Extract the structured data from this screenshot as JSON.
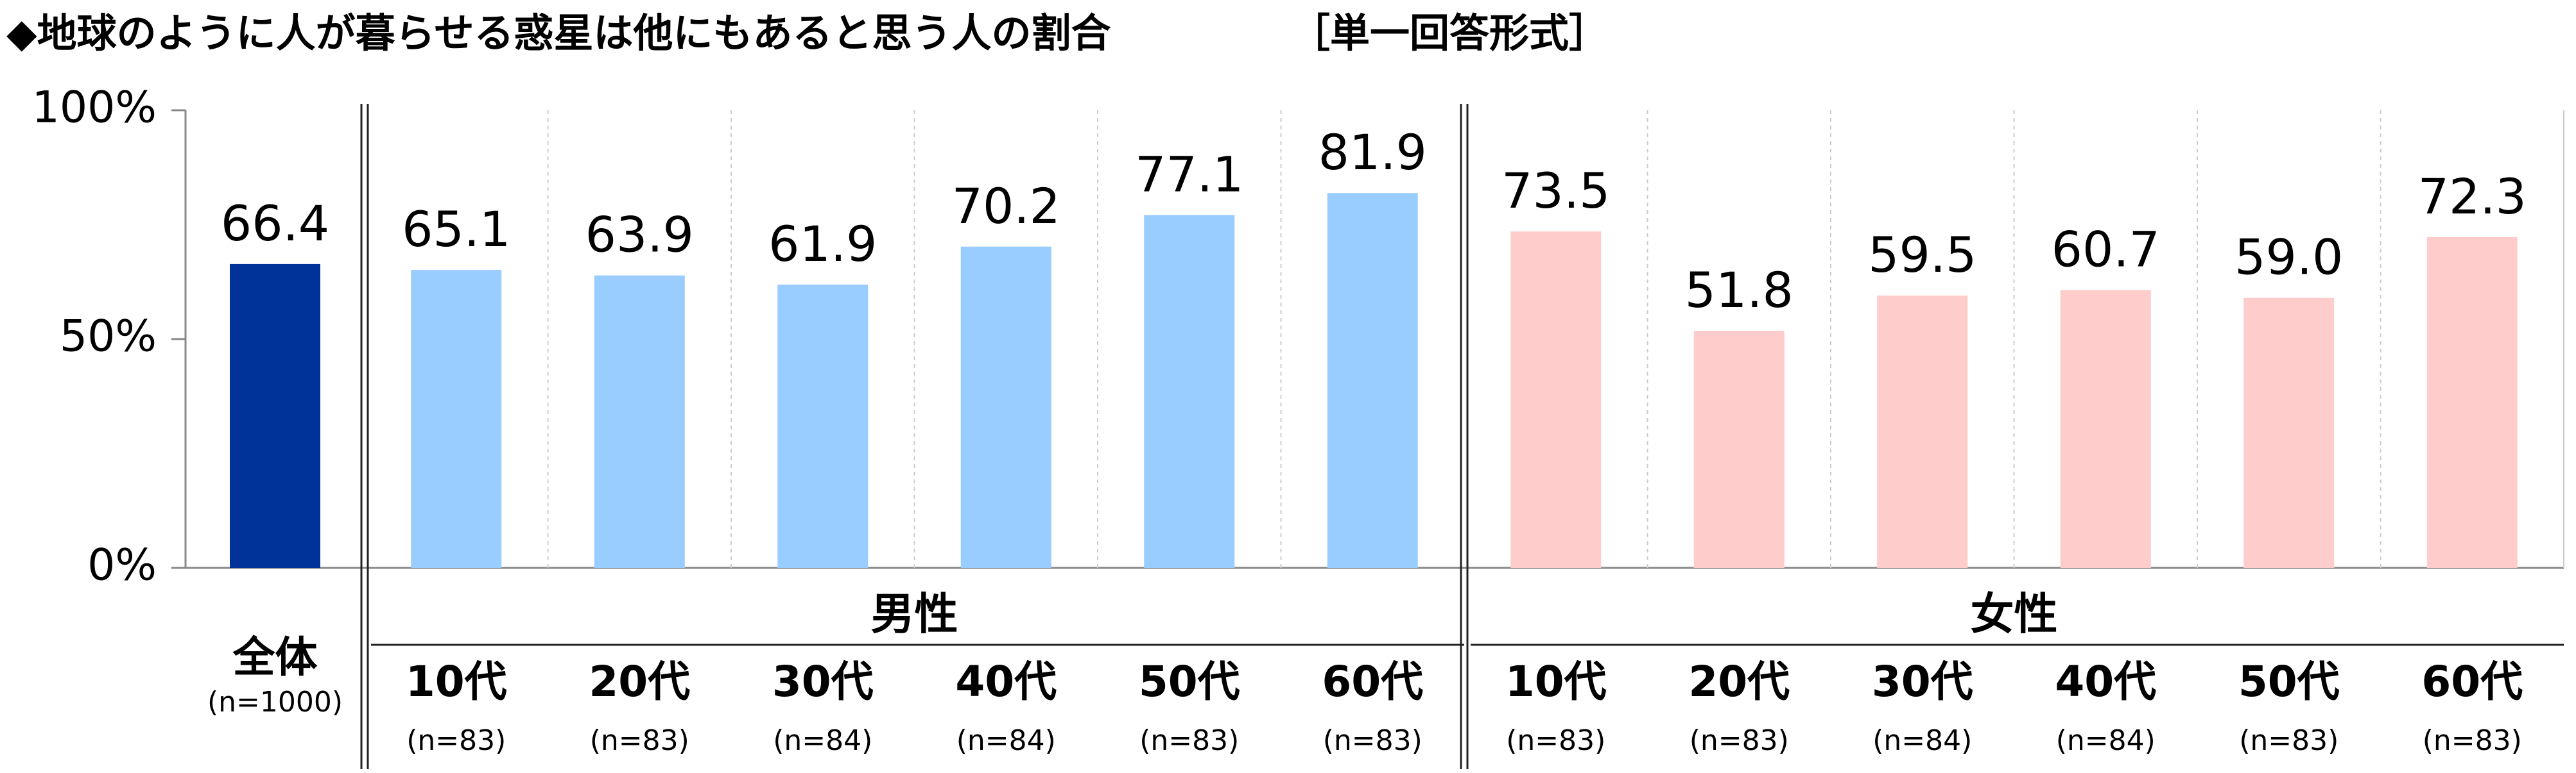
{
  "chart_data": {
    "type": "bar",
    "title": "◆地球のように人が暮らせる惑星は他にもあると思う人の割合",
    "subtitle": "［単一回答形式］",
    "ylim": [
      0,
      100
    ],
    "yticks": [
      {
        "value": 0,
        "label": "0%"
      },
      {
        "value": 50,
        "label": "50%"
      },
      {
        "value": 100,
        "label": "100%"
      }
    ],
    "total": {
      "label": "全体",
      "sample_size": "(n=1000)",
      "value": 66.4,
      "color": "#003399"
    },
    "series": [
      {
        "name": "男性",
        "color": "#99ccff",
        "categories": [
          "10代",
          "20代",
          "30代",
          "40代",
          "50代",
          "60代"
        ],
        "sample_sizes": [
          "(n=83)",
          "(n=83)",
          "(n=84)",
          "(n=84)",
          "(n=83)",
          "(n=83)"
        ],
        "values": [
          65.1,
          63.9,
          61.9,
          70.2,
          77.1,
          81.9
        ]
      },
      {
        "name": "女性",
        "color": "#ffcccc",
        "categories": [
          "10代",
          "20代",
          "30代",
          "40代",
          "50代",
          "60代"
        ],
        "sample_sizes": [
          "(n=83)",
          "(n=83)",
          "(n=84)",
          "(n=84)",
          "(n=83)",
          "(n=83)"
        ],
        "values": [
          73.5,
          51.8,
          59.5,
          60.7,
          59.0,
          72.3
        ],
        "value_labels": [
          "73.5",
          "51.8",
          "59.5",
          "60.7",
          "59.0",
          "72.3"
        ]
      }
    ]
  }
}
